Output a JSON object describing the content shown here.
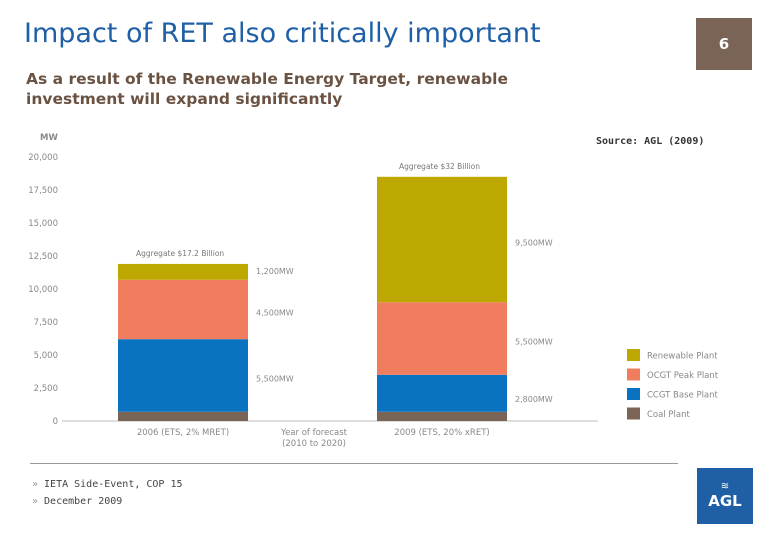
{
  "header": {
    "title": "Impact of RET also critically important",
    "page_number": "6",
    "subtitle_line1": "As a result of the Renewable Energy Target, renewable",
    "subtitle_line2": "investment will expand significantly",
    "source": "Source: AGL (2009)"
  },
  "footer": {
    "items": [
      "IETA Side-Event, COP 15",
      "December 2009"
    ],
    "bullet": "»",
    "logo_text": "AGL"
  },
  "chart_data": {
    "type": "bar",
    "stacked": true,
    "ylabel": "MW",
    "ylim": [
      0,
      20000
    ],
    "yticks": [
      0,
      2500,
      5000,
      7500,
      10000,
      12500,
      15000,
      17500,
      20000
    ],
    "ytick_labels": [
      "0",
      "2,500",
      "5,000",
      "7,500",
      "10,000",
      "12,500",
      "15,000",
      "17,500",
      "20,000"
    ],
    "categories": [
      "2006 (ETS, 2% MRET)",
      "2009 (ETS, 20% xRET)"
    ],
    "xaxis_label_line1": "Year of forecast",
    "xaxis_label_line2": "(2010 to 2020)",
    "series": [
      {
        "name": "Coal Plant",
        "color": "#7a6455",
        "values": [
          700,
          700
        ]
      },
      {
        "name": "CCGT Base Plant",
        "color": "#0a73c1",
        "values": [
          5500,
          2800
        ],
        "labels": [
          "5,500MW",
          "2,800MW"
        ]
      },
      {
        "name": "OCGT Peak Plant",
        "color": "#f07d5e",
        "values": [
          4500,
          5500
        ],
        "labels": [
          "4,500MW",
          "5,500MW"
        ]
      },
      {
        "name": "Renewable Plant",
        "color": "#bca800",
        "values": [
          1200,
          9500
        ],
        "labels": [
          "1,200MW",
          "9,500MW"
        ]
      }
    ],
    "annotations": [
      "Aggregate $17.2 Billion",
      "Aggregate $32 Billion"
    ],
    "legend_order": [
      "Renewable Plant",
      "OCGT Peak Plant",
      "CCGT Base Plant",
      "Coal Plant"
    ],
    "legend_position": "right"
  }
}
